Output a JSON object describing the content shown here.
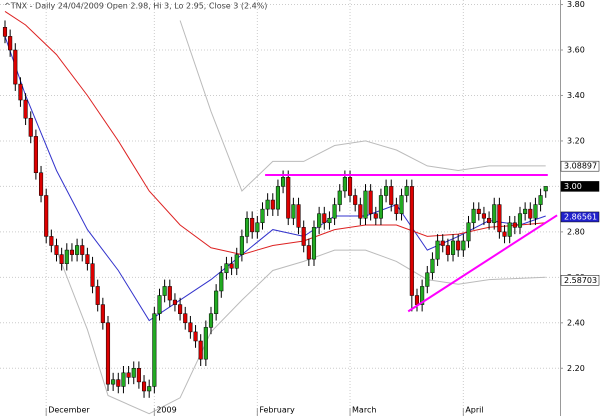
{
  "chart_data": {
    "type": "candlestick",
    "title": "^TNX - Daily 24/04/2009 Open 2.98, Hi 3, Lo 2.95, Close 3 (2.4%)",
    "categories": [
      null,
      null,
      null,
      null,
      null,
      null,
      null,
      null,
      "December",
      null,
      null,
      null,
      null,
      null,
      null,
      null,
      null,
      null,
      null,
      null,
      null,
      null,
      null,
      null,
      null,
      null,
      null,
      null,
      null,
      "2009",
      null,
      null,
      null,
      null,
      null,
      null,
      null,
      null,
      null,
      null,
      null,
      null,
      null,
      null,
      null,
      null,
      null,
      null,
      null,
      "February",
      null,
      null,
      null,
      null,
      null,
      null,
      null,
      null,
      null,
      null,
      null,
      null,
      null,
      null,
      null,
      null,
      null,
      "March",
      null,
      null,
      null,
      null,
      null,
      null,
      null,
      null,
      null,
      null,
      null,
      null,
      null,
      null,
      null,
      null,
      null,
      null,
      null,
      null,
      null,
      "April",
      null,
      null,
      null,
      null,
      null,
      null,
      null,
      null,
      null,
      null,
      null,
      null,
      null,
      null,
      null,
      null
    ],
    "open": [
      3.7,
      3.66,
      3.6,
      3.45,
      3.38,
      3.3,
      3.22,
      3.06,
      2.96,
      2.78,
      2.74,
      2.7,
      2.66,
      2.72,
      2.7,
      2.74,
      2.7,
      2.66,
      2.56,
      2.48,
      2.4,
      2.13,
      2.15,
      2.12,
      2.18,
      2.16,
      2.2,
      2.14,
      2.1,
      2.12,
      2.44,
      2.52,
      2.56,
      2.5,
      2.48,
      2.44,
      2.4,
      2.36,
      2.32,
      2.24,
      2.38,
      2.44,
      2.54,
      2.62,
      2.66,
      2.64,
      2.7,
      2.78,
      2.86,
      2.8,
      2.84,
      2.9,
      2.94,
      2.9,
      3.0,
      3.04,
      2.86,
      2.92,
      2.82,
      2.74,
      2.68,
      2.82,
      2.88,
      2.84,
      2.86,
      2.92,
      2.98,
      3.04,
      2.96,
      2.92,
      2.86,
      2.98,
      2.88,
      2.86,
      2.96,
      3.0,
      2.92,
      2.88,
      2.96,
      3.0,
      2.52,
      2.48,
      2.56,
      2.62,
      2.68,
      2.76,
      2.74,
      2.7,
      2.76,
      2.72,
      2.76,
      2.84,
      2.9,
      2.88,
      2.86,
      2.84,
      2.92,
      2.8,
      2.78,
      2.84,
      2.82,
      2.88,
      2.9,
      2.86,
      2.92,
      2.98
    ],
    "high": [
      3.73,
      3.69,
      3.63,
      3.48,
      3.41,
      3.33,
      3.25,
      3.09,
      2.99,
      2.81,
      2.77,
      2.73,
      2.75,
      2.75,
      2.77,
      2.77,
      2.73,
      2.69,
      2.59,
      2.51,
      2.43,
      2.18,
      2.18,
      2.21,
      2.21,
      2.23,
      2.23,
      2.17,
      2.15,
      2.47,
      2.55,
      2.59,
      2.59,
      2.53,
      2.51,
      2.47,
      2.43,
      2.39,
      2.35,
      2.41,
      2.47,
      2.57,
      2.65,
      2.69,
      2.69,
      2.73,
      2.81,
      2.89,
      2.89,
      2.87,
      2.93,
      2.97,
      2.97,
      3.03,
      3.07,
      3.07,
      2.95,
      2.95,
      2.85,
      2.77,
      2.85,
      2.91,
      2.91,
      2.89,
      2.95,
      3.01,
      3.07,
      3.07,
      2.99,
      2.95,
      3.01,
      3.01,
      2.91,
      2.99,
      3.03,
      3.03,
      2.95,
      2.99,
      3.03,
      3.03,
      2.55,
      2.59,
      2.65,
      2.71,
      2.79,
      2.79,
      2.77,
      2.79,
      2.79,
      2.79,
      2.87,
      2.93,
      2.93,
      2.91,
      2.89,
      2.95,
      2.95,
      2.83,
      2.87,
      2.87,
      2.91,
      2.93,
      2.93,
      2.95,
      2.99,
      3.0
    ],
    "low": [
      3.63,
      3.57,
      3.42,
      3.35,
      3.27,
      3.19,
      3.03,
      2.93,
      2.75,
      2.71,
      2.67,
      2.63,
      2.63,
      2.67,
      2.67,
      2.67,
      2.63,
      2.53,
      2.45,
      2.37,
      2.1,
      2.1,
      2.09,
      2.09,
      2.13,
      2.13,
      2.11,
      2.07,
      2.07,
      2.09,
      2.41,
      2.49,
      2.47,
      2.45,
      2.41,
      2.37,
      2.33,
      2.29,
      2.21,
      2.21,
      2.35,
      2.41,
      2.51,
      2.59,
      2.61,
      2.61,
      2.67,
      2.75,
      2.77,
      2.77,
      2.81,
      2.87,
      2.87,
      2.87,
      2.97,
      2.83,
      2.83,
      2.79,
      2.71,
      2.65,
      2.65,
      2.79,
      2.81,
      2.81,
      2.83,
      2.89,
      2.95,
      2.93,
      2.89,
      2.83,
      2.83,
      2.85,
      2.83,
      2.83,
      2.93,
      2.89,
      2.85,
      2.85,
      2.93,
      2.45,
      2.45,
      2.45,
      2.53,
      2.59,
      2.65,
      2.71,
      2.67,
      2.67,
      2.69,
      2.69,
      2.73,
      2.81,
      2.85,
      2.83,
      2.81,
      2.81,
      2.77,
      2.75,
      2.75,
      2.79,
      2.79,
      2.85,
      2.83,
      2.83,
      2.89,
      2.95
    ],
    "close": [
      3.66,
      3.6,
      3.45,
      3.38,
      3.3,
      3.22,
      3.06,
      2.96,
      2.78,
      2.74,
      2.7,
      2.66,
      2.72,
      2.7,
      2.74,
      2.7,
      2.66,
      2.56,
      2.48,
      2.4,
      2.13,
      2.15,
      2.12,
      2.18,
      2.16,
      2.2,
      2.14,
      2.1,
      2.12,
      2.44,
      2.52,
      2.56,
      2.5,
      2.48,
      2.44,
      2.4,
      2.36,
      2.32,
      2.24,
      2.38,
      2.44,
      2.54,
      2.62,
      2.66,
      2.64,
      2.7,
      2.78,
      2.86,
      2.8,
      2.84,
      2.9,
      2.94,
      2.9,
      3.0,
      3.04,
      2.86,
      2.92,
      2.82,
      2.74,
      2.68,
      2.82,
      2.88,
      2.84,
      2.86,
      2.92,
      2.98,
      3.04,
      2.96,
      2.92,
      2.86,
      2.98,
      2.88,
      2.86,
      2.96,
      3.0,
      2.92,
      2.88,
      2.96,
      3.0,
      2.52,
      2.48,
      2.56,
      2.62,
      2.68,
      2.76,
      2.74,
      2.7,
      2.76,
      2.72,
      2.76,
      2.84,
      2.9,
      2.88,
      2.86,
      2.84,
      2.92,
      2.8,
      2.78,
      2.84,
      2.82,
      2.88,
      2.9,
      2.86,
      2.92,
      2.96,
      3.0
    ],
    "up_color": "#22aa22",
    "down_color": "#dd0000",
    "overlays": [
      {
        "color": "#3333cc",
        "x": [
          0,
          4,
          10,
          16,
          22,
          28,
          34,
          40,
          46,
          52,
          58,
          64,
          70,
          76,
          82,
          88,
          94,
          100,
          105
        ],
        "values": [
          3.66,
          3.4,
          3.07,
          2.81,
          2.63,
          2.41,
          2.5,
          2.59,
          2.7,
          2.81,
          2.78,
          2.87,
          2.87,
          2.92,
          2.72,
          2.78,
          2.85,
          2.83,
          2.87
        ]
      },
      {
        "color": "#dd2222",
        "x": [
          0,
          4,
          10,
          16,
          22,
          28,
          34,
          40,
          46,
          52,
          58,
          64,
          70,
          76,
          82,
          88,
          94,
          100,
          105
        ],
        "values": [
          3.77,
          3.71,
          3.58,
          3.4,
          3.2,
          2.98,
          2.83,
          2.73,
          2.7,
          2.74,
          2.76,
          2.81,
          2.83,
          2.83,
          2.78,
          2.79,
          2.82,
          2.83,
          2.84
        ]
      },
      {
        "color": "#bbbbbb",
        "x": [
          34,
          40,
          46,
          52,
          58,
          64,
          70,
          76,
          82,
          88,
          94,
          105
        ],
        "values": [
          3.73,
          3.33,
          2.98,
          3.11,
          3.11,
          3.18,
          3.2,
          3.16,
          3.09,
          3.07,
          3.09,
          3.09
        ]
      },
      {
        "color": "#bbbbbb",
        "x": [
          10,
          16,
          20,
          28,
          34,
          40,
          46,
          52,
          58,
          64,
          70,
          76,
          82,
          88,
          94,
          105
        ],
        "values": [
          2.72,
          2.37,
          2.08,
          2.0,
          2.07,
          2.36,
          2.5,
          2.63,
          2.67,
          2.72,
          2.72,
          2.67,
          2.59,
          2.57,
          2.59,
          2.6
        ]
      }
    ],
    "trendlines": [
      {
        "color": "#ff00ff",
        "x": [
          50.5,
          105.4
        ],
        "values": [
          3.05,
          3.05
        ]
      },
      {
        "color": "#ff00ff",
        "x": [
          78.3,
          107.2
        ],
        "values": [
          2.45,
          2.873
        ]
      }
    ],
    "price_tags": [
      {
        "value": 3.08897,
        "label": "3.08897",
        "bg": "#ffffff",
        "fg": "#000000"
      },
      {
        "value": 3,
        "label": "3.00",
        "bg": "#000000",
        "fg": "#ffffff"
      },
      {
        "value": 2.86561,
        "label": "2.86561",
        "bg": "#2222cc",
        "fg": "#ffffff"
      },
      {
        "value": 2.58703,
        "label": "2.58703",
        "bg": "#ffffff",
        "fg": "#000000"
      }
    ],
    "xlim": [
      -0.97,
      107.77
    ],
    "ylim": [
      1.99,
      3.82
    ],
    "yticks": [
      {
        "value": 3.8,
        "label": "3.80"
      },
      {
        "value": 3.6,
        "label": "3.60"
      },
      {
        "value": 3.4,
        "label": "3.40"
      },
      {
        "value": 3.2,
        "label": "3.20"
      },
      {
        "value": 3.0,
        "label": "3.00"
      },
      {
        "value": 2.8,
        "label": "2.80"
      },
      {
        "value": 2.6,
        "label": "2.60"
      },
      {
        "value": 2.4,
        "label": "2.40"
      },
      {
        "value": 2.2,
        "label": "2.20"
      }
    ],
    "grid": true
  }
}
